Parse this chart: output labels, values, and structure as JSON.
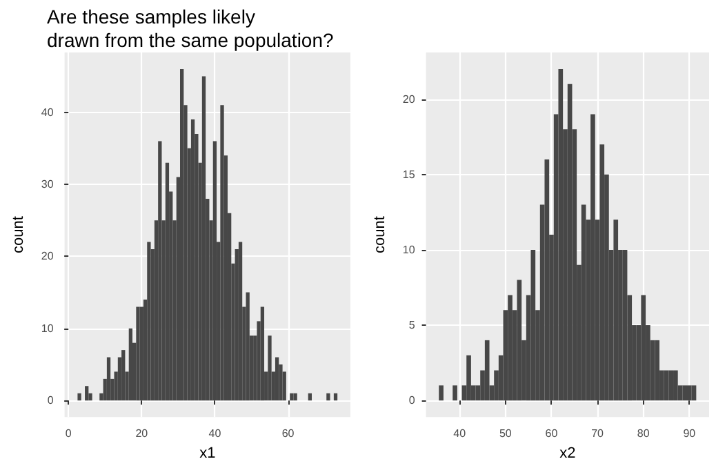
{
  "chart_data": [
    {
      "type": "histogram",
      "title": "Are these samples likely\ndrawn from the same population?",
      "xlabel": "x1",
      "ylabel": "count",
      "color": "#474747",
      "bins": [
        2.5,
        3.5,
        4.5,
        5.5,
        6.5,
        7.5,
        8.5,
        9.5,
        10.5,
        11.5,
        12.5,
        13.5,
        14.5,
        15.5,
        16.5,
        17.5,
        18.5,
        19.5,
        20.5,
        21.5,
        22.5,
        23.5,
        24.5,
        25.5,
        26.5,
        27.5,
        28.5,
        29.5,
        30.5,
        31.5,
        32.5,
        33.5,
        34.5,
        35.5,
        36.5,
        37.5,
        38.5,
        39.5,
        40.5,
        41.5,
        42.5,
        43.5,
        44.5,
        45.5,
        46.5,
        47.5,
        48.5,
        49.5,
        50.5,
        51.5,
        52.5,
        53.5,
        54.5,
        55.5,
        56.5,
        57.5,
        58.5,
        59.5,
        60.5,
        61.5,
        62.5,
        63.5,
        64.5,
        65.5,
        66.5,
        67.5,
        68.5,
        69.5,
        70.5,
        71.5,
        72.5,
        73.5
      ],
      "values": [
        1,
        0,
        2,
        1,
        0,
        0,
        1,
        3,
        6,
        3,
        4,
        6,
        7,
        4,
        10,
        8,
        13,
        13,
        14,
        22,
        21,
        25,
        36,
        25,
        33,
        29,
        25,
        31,
        46,
        41,
        35,
        39,
        37,
        33,
        45,
        28,
        25,
        36,
        22,
        41,
        34,
        26,
        19,
        21,
        22,
        13,
        15,
        9,
        9,
        11,
        13,
        4,
        9,
        4,
        6,
        5,
        4,
        0,
        1,
        1,
        0,
        0,
        0,
        1,
        0,
        0,
        0,
        0,
        1,
        0,
        1
      ],
      "xlim": [
        -1.05,
        77.05
      ],
      "xticks": [
        0,
        20,
        40,
        60
      ],
      "ylim": [
        -2.3,
        48.3
      ],
      "yticks": [
        0,
        10,
        20,
        30,
        40
      ],
      "grid": true
    },
    {
      "type": "histogram",
      "xlabel": "x2",
      "ylabel": "count",
      "color": "#474747",
      "bins": [
        35.5,
        36.5,
        37.5,
        38.5,
        39.5,
        40.5,
        41.5,
        42.5,
        43.5,
        44.5,
        45.5,
        46.5,
        47.5,
        48.5,
        49.5,
        50.5,
        51.5,
        52.5,
        53.5,
        54.5,
        55.5,
        56.5,
        57.5,
        58.5,
        59.5,
        60.5,
        61.5,
        62.5,
        63.5,
        64.5,
        65.5,
        66.5,
        67.5,
        68.5,
        69.5,
        70.5,
        71.5,
        72.5,
        73.5,
        74.5,
        75.5,
        76.5,
        77.5,
        78.5,
        79.5,
        80.5,
        81.5,
        82.5,
        83.5,
        84.5,
        85.5,
        86.5,
        87.5,
        88.5,
        89.5,
        90.5,
        91.5
      ],
      "values": [
        1,
        0,
        0,
        1,
        0,
        1,
        3,
        1,
        1,
        2,
        4,
        1,
        2,
        3,
        6,
        7,
        6,
        8,
        4,
        7,
        10,
        6,
        13,
        16,
        11,
        19,
        22,
        18,
        21,
        18,
        9,
        13,
        12,
        19,
        12,
        17,
        15,
        10,
        12,
        10,
        10,
        7,
        5,
        5,
        7,
        5,
        4,
        4,
        2,
        2,
        2,
        2,
        1,
        1,
        1,
        1
      ],
      "xlim": [
        32.7,
        94.3
      ],
      "xticks": [
        40,
        50,
        60,
        70,
        80,
        90
      ],
      "ylim": [
        -1.1,
        23.1
      ],
      "yticks": [
        0,
        5,
        10,
        15,
        20
      ],
      "grid": true
    }
  ]
}
